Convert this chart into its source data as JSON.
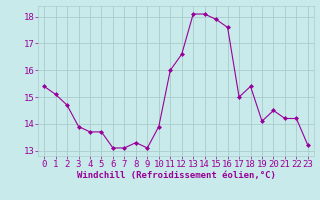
{
  "x": [
    0,
    1,
    2,
    3,
    4,
    5,
    6,
    7,
    8,
    9,
    10,
    11,
    12,
    13,
    14,
    15,
    16,
    17,
    18,
    19,
    20,
    21,
    22,
    23
  ],
  "y": [
    15.4,
    15.1,
    14.7,
    13.9,
    13.7,
    13.7,
    13.1,
    13.1,
    13.3,
    13.1,
    13.9,
    16.0,
    16.6,
    18.1,
    18.1,
    17.9,
    17.6,
    15.0,
    15.4,
    14.1,
    14.5,
    14.2,
    14.2,
    13.2
  ],
  "line_color": "#990099",
  "marker": "D",
  "marker_size": 2,
  "bg_color": "#c8eaea",
  "grid_color": "#aacccc",
  "xlabel": "Windchill (Refroidissement éolien,°C)",
  "xlabel_color": "#990099",
  "xlabel_fontsize": 6.5,
  "tick_fontsize": 6.5,
  "tick_color": "#990099",
  "ylim": [
    12.8,
    18.4
  ],
  "yticks": [
    13,
    14,
    15,
    16,
    17,
    18
  ],
  "xticks": [
    0,
    1,
    2,
    3,
    4,
    5,
    6,
    7,
    8,
    9,
    10,
    11,
    12,
    13,
    14,
    15,
    16,
    17,
    18,
    19,
    20,
    21,
    22,
    23
  ],
  "xlim": [
    -0.5,
    23.5
  ]
}
